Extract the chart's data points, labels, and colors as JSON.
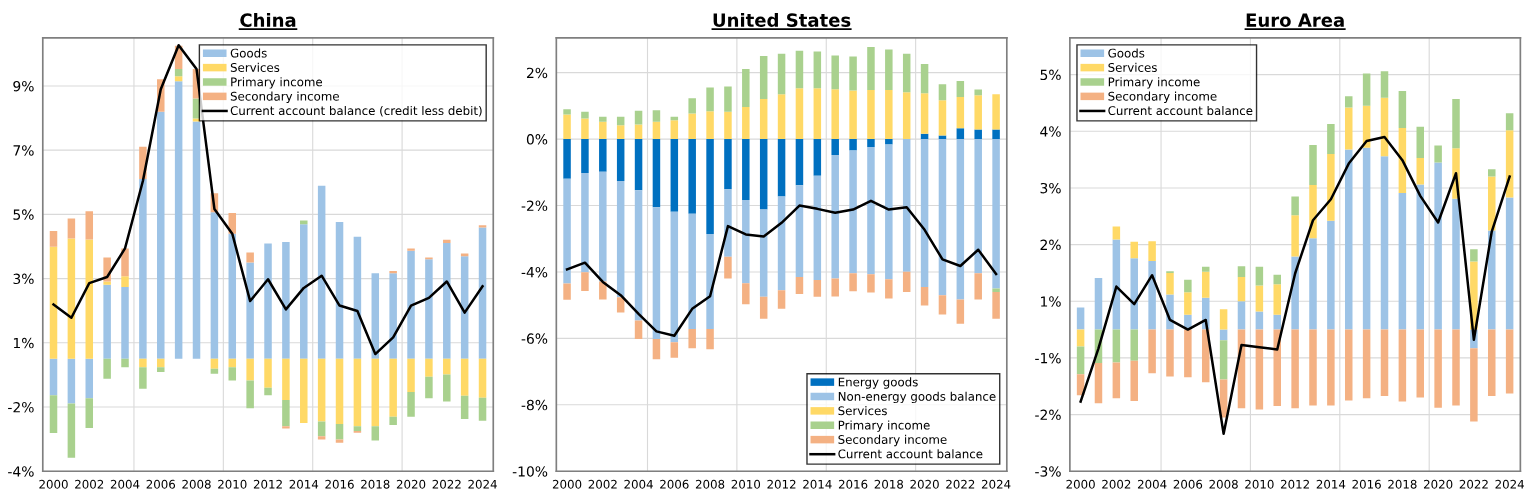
{
  "chart_data": [
    {
      "type": "bar",
      "title": "China",
      "stacked": true,
      "grid": "y",
      "legend": "top right",
      "x": [
        2000,
        2001,
        2002,
        2003,
        2004,
        2005,
        2006,
        2007,
        2008,
        2009,
        2010,
        2011,
        2012,
        2013,
        2014,
        2015,
        2016,
        2017,
        2018,
        2019,
        2020,
        2021,
        2022,
        2023,
        2024
      ],
      "xlim": [
        1999.4,
        2024.6
      ],
      "xticks": [
        2000,
        2002,
        2004,
        2006,
        2008,
        2010,
        2012,
        2014,
        2016,
        2018,
        2020,
        2022,
        2024
      ],
      "ylim": [
        -3.5,
        10
      ],
      "yticks": [
        {
          "value": -3.5,
          "label": "-4%"
        },
        {
          "value": -1.5,
          "label": "-2%"
        },
        {
          "value": 0.5,
          "label": "1%"
        },
        {
          "value": 2.5,
          "label": "3%"
        },
        {
          "value": 4.5,
          "label": "5%"
        },
        {
          "value": 6.5,
          "label": "7%"
        },
        {
          "value": 8.5,
          "label": "9%"
        }
      ],
      "ref_lines": [
        {
          "axis": "x",
          "value": 2004.5,
          "color": "#d9d9d9"
        },
        {
          "axis": "x",
          "value": 2009.5,
          "color": "#d9d9d9"
        },
        {
          "axis": "x",
          "value": 2014.5,
          "color": "#d9d9d9"
        },
        {
          "axis": "x",
          "value": 2019.5,
          "color": "#d9d9d9"
        }
      ],
      "series": [
        {
          "name": "Goods",
          "color": "#9dc3e6",
          "values": [
            -1.13,
            -1.39,
            -1.23,
            2.31,
            2.24,
            5.6,
            7.7,
            8.65,
            7.39,
            4.57,
            3.9,
            3.0,
            3.59,
            3.64,
            4.19,
            5.39,
            4.26,
            3.8,
            2.67,
            2.67,
            3.37,
            3.1,
            3.61,
            3.2,
            4.09
          ]
        },
        {
          "name": "Services",
          "color": "#ffd966",
          "values": [
            3.49,
            3.75,
            3.72,
            0.1,
            0.33,
            -0.26,
            -0.26,
            0.15,
            0.1,
            -0.31,
            -0.26,
            -0.67,
            -0.9,
            -1.28,
            -2.0,
            -1.95,
            -2.03,
            -2.1,
            -2.1,
            -1.8,
            -1.03,
            -0.56,
            -0.49,
            -1.15,
            -1.21
          ]
        },
        {
          "name": "Primary income",
          "color": "#a9d18e",
          "values": [
            -1.18,
            -1.69,
            -0.92,
            -0.62,
            -0.26,
            -0.67,
            -0.15,
            0.23,
            0.62,
            -0.15,
            -0.41,
            -0.87,
            -0.23,
            -0.82,
            0.12,
            -0.46,
            -0.48,
            -0.15,
            -0.44,
            -0.26,
            -0.77,
            -0.67,
            -0.84,
            -0.72,
            -0.72
          ]
        },
        {
          "name": "Secondary income",
          "color": "#f4b183",
          "values": [
            0.49,
            0.62,
            0.88,
            0.75,
            0.87,
            1.01,
            1.01,
            0.72,
            0.92,
            0.59,
            0.64,
            0.31,
            null,
            -0.07,
            null,
            -0.1,
            -0.1,
            -0.05,
            null,
            0.07,
            0.07,
            0.06,
            0.1,
            0.08,
            0.07
          ]
        },
        {
          "name": "Current account balance (credit less debit)",
          "type": "line",
          "color": "#000000",
          "values": [
            1.69,
            1.28,
            2.36,
            2.55,
            3.44,
            5.54,
            8.4,
            9.77,
            9.03,
            4.67,
            3.9,
            1.8,
            2.48,
            1.54,
            2.21,
            2.59,
            1.66,
            1.49,
            0.15,
            0.67,
            1.66,
            1.9,
            2.41,
            1.44,
            2.26
          ]
        }
      ]
    },
    {
      "type": "bar",
      "title": "United States",
      "stacked": true,
      "grid": "y",
      "legend": "bottom right",
      "x": [
        2000,
        2001,
        2002,
        2003,
        2004,
        2005,
        2006,
        2007,
        2008,
        2009,
        2010,
        2011,
        2012,
        2013,
        2014,
        2015,
        2016,
        2017,
        2018,
        2019,
        2020,
        2021,
        2022,
        2023,
        2024
      ],
      "xlim": [
        1999.4,
        2024.6
      ],
      "xticks": [
        2000,
        2002,
        2004,
        2006,
        2008,
        2010,
        2012,
        2014,
        2016,
        2018,
        2020,
        2022,
        2024
      ],
      "ylim": [
        -10,
        3.05
      ],
      "yticks": [
        {
          "value": -10,
          "label": "-10%"
        },
        {
          "value": -8,
          "label": "-8%"
        },
        {
          "value": -6,
          "label": "-6%"
        },
        {
          "value": -4,
          "label": "-4%"
        },
        {
          "value": -2,
          "label": "-2%"
        },
        {
          "value": 0,
          "label": "0%"
        },
        {
          "value": 2,
          "label": "2%"
        }
      ],
      "ref_lines": [
        {
          "axis": "x",
          "value": 2004.5,
          "color": "#d9d9d9"
        },
        {
          "axis": "x",
          "value": 2009.5,
          "color": "#d9d9d9"
        },
        {
          "axis": "x",
          "value": 2014.5,
          "color": "#d9d9d9"
        },
        {
          "axis": "x",
          "value": 2019.5,
          "color": "#d9d9d9"
        }
      ],
      "series": [
        {
          "name": "Energy goods",
          "color": "#0070c0",
          "values": [
            -1.19,
            -1.02,
            -0.98,
            -1.26,
            -1.54,
            -2.05,
            -2.19,
            -2.25,
            -2.86,
            -1.51,
            -1.83,
            -2.12,
            -1.73,
            -1.39,
            -1.1,
            -0.48,
            -0.34,
            -0.24,
            -0.16,
            null,
            0.16,
            0.11,
            0.33,
            0.29,
            0.29
          ]
        },
        {
          "name": "Non-energy goods balance",
          "color": "#9dc3e6",
          "values": [
            -3.16,
            -2.99,
            -3.31,
            -3.5,
            -3.92,
            -3.97,
            -3.93,
            -3.47,
            -2.86,
            -2.03,
            -2.51,
            -2.63,
            -2.82,
            -2.76,
            -3.14,
            -3.72,
            -3.7,
            -3.83,
            -4.06,
            -3.99,
            -4.45,
            -4.7,
            -4.83,
            -4.04,
            -4.5
          ]
        },
        {
          "name": "Services",
          "color": "#ffd966",
          "values": [
            0.74,
            0.62,
            0.52,
            0.42,
            0.44,
            0.52,
            0.57,
            0.77,
            0.84,
            0.82,
            0.97,
            1.21,
            1.35,
            1.53,
            1.53,
            1.5,
            1.46,
            1.48,
            1.48,
            1.41,
            1.22,
            1.06,
            0.94,
            1.03,
            1.06
          ]
        },
        {
          "name": "Primary income",
          "color": "#a9d18e",
          "values": [
            0.16,
            0.2,
            0.15,
            0.25,
            0.41,
            0.35,
            0.1,
            0.46,
            0.71,
            0.76,
            1.14,
            1.29,
            1.22,
            1.13,
            1.11,
            1.02,
            1.03,
            1.29,
            1.22,
            1.16,
            0.88,
            0.48,
            0.48,
            0.17,
            -0.1
          ]
        },
        {
          "name": "Secondary income",
          "color": "#f4b183",
          "values": [
            -0.49,
            -0.56,
            -0.54,
            -0.46,
            -0.56,
            -0.61,
            -0.46,
            -0.58,
            -0.61,
            -0.66,
            -0.63,
            -0.66,
            -0.56,
            -0.51,
            -0.51,
            -0.54,
            -0.54,
            -0.55,
            -0.58,
            -0.61,
            -0.56,
            -0.58,
            -0.73,
            -0.79,
            -0.81
          ]
        },
        {
          "name": "Current account balance",
          "type": "line",
          "color": "#000000",
          "values": [
            -3.92,
            -3.72,
            -4.3,
            -4.7,
            -5.26,
            -5.79,
            -5.92,
            -5.11,
            -4.73,
            -2.62,
            -2.87,
            -2.93,
            -2.52,
            -2.0,
            -2.1,
            -2.22,
            -2.12,
            -1.86,
            -2.12,
            -2.05,
            -2.73,
            -3.62,
            -3.82,
            -3.33,
            -4.06
          ]
        }
      ]
    },
    {
      "type": "bar",
      "title": "Euro Area",
      "stacked": true,
      "grid": "y",
      "legend": "top left",
      "x": [
        2000,
        2001,
        2002,
        2003,
        2004,
        2005,
        2006,
        2007,
        2008,
        2009,
        2010,
        2011,
        2012,
        2013,
        2014,
        2015,
        2016,
        2017,
        2018,
        2019,
        2020,
        2021,
        2022,
        2023,
        2024
      ],
      "xlim": [
        1999.4,
        2024.6
      ],
      "xticks": [
        2000,
        2002,
        2004,
        2006,
        2008,
        2010,
        2012,
        2014,
        2016,
        2018,
        2020,
        2022,
        2024
      ],
      "ylim": [
        -2.5,
        5.15
      ],
      "yticks": [
        {
          "value": -2.5,
          "label": "-3%"
        },
        {
          "value": -1.5,
          "label": "-2%"
        },
        {
          "value": -0.5,
          "label": "-1%"
        },
        {
          "value": 0.5,
          "label": "1%"
        },
        {
          "value": 1.5,
          "label": "2%"
        },
        {
          "value": 2.5,
          "label": "3%"
        },
        {
          "value": 3.5,
          "label": "4%"
        },
        {
          "value": 4.5,
          "label": "5%"
        }
      ],
      "ref_lines": [
        {
          "axis": "x",
          "value": 2004.5,
          "color": "#d9d9d9"
        },
        {
          "axis": "x",
          "value": 2009.5,
          "color": "#d9d9d9"
        },
        {
          "axis": "x",
          "value": 2014.5,
          "color": "#d9d9d9"
        },
        {
          "axis": "x",
          "value": 2019.5,
          "color": "#d9d9d9"
        }
      ],
      "series": [
        {
          "name": "Goods",
          "color": "#9dc3e6",
          "values": [
            0.39,
            0.91,
            1.59,
            1.26,
            1.21,
            0.62,
            0.26,
            0.56,
            -0.19,
            0.5,
            0.32,
            0.26,
            1.29,
            1.61,
            1.92,
            3.18,
            3.21,
            3.06,
            2.41,
            2.56,
            2.95,
            2.31,
            -0.33,
            1.75,
            2.33
          ]
        },
        {
          "name": "Services",
          "color": "#ffd966",
          "values": [
            -0.3,
            null,
            0.23,
            0.29,
            0.35,
            0.38,
            0.4,
            0.46,
            0.36,
            0.43,
            0.46,
            0.54,
            0.73,
            0.94,
            1.18,
            0.74,
            0.74,
            1.03,
            1.15,
            0.47,
            null,
            0.89,
            1.2,
            0.95,
            1.19
          ]
        },
        {
          "name": "Primary income",
          "color": "#a9d18e",
          "values": [
            -0.49,
            -0.59,
            -0.58,
            -0.55,
            null,
            0.03,
            0.22,
            0.09,
            -0.69,
            0.19,
            0.33,
            0.17,
            0.33,
            0.71,
            0.53,
            0.2,
            0.57,
            0.47,
            0.65,
            0.55,
            0.3,
            0.87,
            0.22,
            0.13,
            0.3
          ]
        },
        {
          "name": "Secondary income",
          "color": "#f4b183",
          "values": [
            -0.37,
            -0.71,
            -0.63,
            -0.71,
            -0.77,
            -0.83,
            -0.84,
            -0.93,
            -0.67,
            -1.39,
            -1.41,
            -1.35,
            -1.39,
            -1.34,
            -1.34,
            -1.25,
            -1.21,
            -1.17,
            -1.27,
            -1.2,
            -1.38,
            -1.34,
            -1.29,
            -1.17,
            -1.13
          ]
        },
        {
          "name": "Current account balance",
          "type": "line",
          "color": "#000000",
          "values": [
            -1.27,
            -0.33,
            0.76,
            0.45,
            0.96,
            0.17,
            0.0,
            0.17,
            -1.84,
            -0.27,
            -0.31,
            -0.35,
            0.99,
            1.93,
            2.3,
            2.93,
            3.33,
            3.4,
            2.99,
            2.36,
            1.89,
            2.76,
            -0.18,
            1.73,
            2.7
          ]
        }
      ]
    }
  ]
}
